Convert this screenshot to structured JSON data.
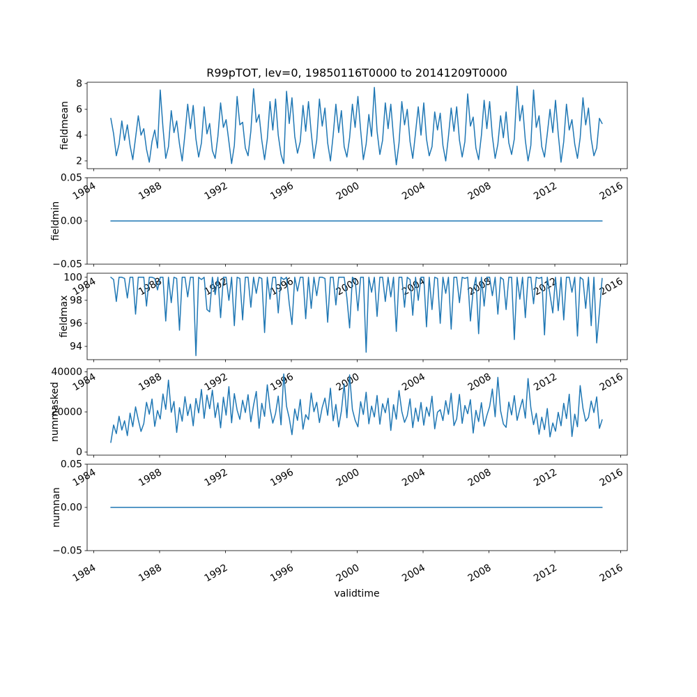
{
  "figure": {
    "title": "R99pTOT, lev=0, 19850116T0000 to 20141209T0000",
    "xlabel": "validtime",
    "line_color": "#1f77b4",
    "background": "#ffffff"
  },
  "chart_data": {
    "type": "line",
    "title": "R99pTOT, lev=0, 19850116T0000 to 20141209T0000",
    "xlabel": "validtime",
    "x_axis": {
      "ticks": [
        1984,
        1988,
        1992,
        1996,
        2000,
        2004,
        2008,
        2012,
        2016
      ],
      "lim": [
        1983.6,
        2016.4
      ]
    },
    "x": {
      "start": 1985.04,
      "step": 0.16667,
      "n": 180
    },
    "subplots": [
      {
        "name": "fieldmean",
        "ylabel": "fieldmean",
        "ylim": [
          1.4,
          8.1
        ],
        "yticks": [
          2,
          4,
          6,
          8
        ],
        "ytick_labels": [
          "2",
          "4",
          "6",
          "8"
        ],
        "values": [
          5.3,
          4.1,
          2.4,
          3.3,
          5.1,
          3.6,
          4.8,
          3.2,
          2.1,
          3.8,
          5.5,
          4.0,
          4.5,
          2.9,
          1.9,
          3.5,
          4.4,
          3.0,
          7.5,
          4.6,
          2.2,
          3.1,
          5.9,
          4.2,
          5.1,
          3.3,
          2.0,
          4.1,
          6.4,
          4.5,
          6.3,
          3.7,
          2.3,
          3.4,
          6.2,
          4.1,
          4.9,
          2.8,
          2.2,
          3.9,
          6.5,
          4.6,
          5.2,
          3.5,
          1.8,
          3.2,
          7.0,
          4.8,
          5.0,
          3.0,
          2.4,
          4.3,
          7.6,
          5.0,
          5.6,
          3.6,
          2.1,
          3.7,
          6.6,
          4.4,
          6.8,
          4.0,
          2.5,
          1.8,
          7.4,
          4.9,
          6.9,
          3.9,
          2.6,
          3.5,
          6.3,
          4.3,
          6.6,
          4.2,
          2.2,
          3.6,
          6.8,
          4.7,
          6.1,
          3.4,
          2.0,
          4.0,
          6.4,
          4.2,
          5.9,
          3.1,
          2.3,
          3.8,
          6.4,
          4.6,
          7.0,
          4.4,
          2.1,
          3.3,
          5.6,
          3.9,
          7.7,
          4.3,
          2.5,
          3.6,
          6.5,
          4.5,
          6.4,
          3.8,
          1.7,
          3.4,
          6.6,
          4.8,
          6.0,
          3.5,
          2.2,
          4.2,
          6.2,
          4.0,
          6.5,
          3.7,
          2.4,
          3.1,
          5.8,
          4.4,
          5.7,
          3.2,
          2.0,
          3.9,
          6.1,
          4.3,
          6.2,
          3.6,
          2.3,
          3.5,
          7.2,
          4.7,
          5.4,
          3.0,
          2.1,
          4.0,
          6.7,
          4.5,
          6.6,
          3.9,
          2.2,
          3.3,
          5.5,
          3.8,
          5.8,
          3.4,
          2.5,
          3.7,
          7.8,
          5.1,
          6.3,
          3.6,
          2.0,
          3.2,
          7.5,
          4.6,
          5.5,
          3.1,
          2.3,
          4.1,
          6.0,
          4.2,
          6.7,
          4.1,
          1.9,
          3.5,
          6.4,
          4.4,
          5.2,
          3.3,
          2.2,
          3.8,
          6.9,
          4.8,
          6.1,
          3.7,
          2.4,
          3.0,
          5.3,
          4.9
        ]
      },
      {
        "name": "fieldmin",
        "ylabel": "fieldmin",
        "ylim": [
          -0.05,
          0.05
        ],
        "yticks": [
          -0.05,
          0,
          0.05
        ],
        "ytick_labels": [
          "−0.05",
          "0.00",
          "0.05"
        ],
        "constant": 0
      },
      {
        "name": "fieldmax",
        "ylabel": "fieldmax",
        "ylim": [
          92.85,
          100.35
        ],
        "yticks": [
          94,
          96,
          98,
          100
        ],
        "ytick_labels": [
          "94",
          "96",
          "98",
          "100"
        ],
        "values": [
          100,
          99.8,
          97.9,
          100,
          100,
          99.9,
          98.2,
          100,
          100,
          96.8,
          100,
          100,
          100,
          97.5,
          100,
          100,
          99.9,
          98.9,
          100,
          100,
          96.2,
          100,
          97.8,
          100,
          99.9,
          95.4,
          100,
          100,
          98.3,
          100,
          100,
          93.2,
          100,
          99.8,
          100,
          97.2,
          97.0,
          100,
          98.5,
          100,
          96.5,
          100,
          100,
          98.0,
          100,
          95.8,
          100,
          99.9,
          96.3,
          100,
          100,
          97.4,
          100,
          98.6,
          100,
          99.9,
          95.2,
          100,
          98.1,
          100,
          100,
          96.9,
          100,
          99.8,
          100,
          97.7,
          95.9,
          100,
          98.8,
          100,
          100,
          96.4,
          100,
          97.3,
          100,
          98.4,
          100,
          100,
          99.9,
          96.1,
          100,
          100,
          97.6,
          100,
          100,
          100,
          98.2,
          95.6,
          100,
          99.8,
          97.1,
          100,
          100,
          93.5,
          100,
          98.7,
          100,
          96.6,
          100,
          100,
          97.9,
          100,
          98.3,
          100,
          95.3,
          100,
          100,
          97.4,
          100,
          99.8,
          96.7,
          100,
          98.0,
          100,
          100,
          95.7,
          100,
          97.2,
          100,
          99.9,
          96.0,
          100,
          98.6,
          100,
          95.5,
          100,
          100,
          97.8,
          100,
          99.9,
          100,
          96.2,
          98.9,
          100,
          95.1,
          100,
          97.5,
          100,
          100,
          98.4,
          100,
          96.8,
          100,
          99.8,
          97.2,
          100,
          100,
          94.6,
          100,
          98.1,
          100,
          96.5,
          100,
          100,
          97.7,
          100,
          99.9,
          100,
          95.0,
          100,
          98.5,
          96.9,
          100,
          97.1,
          100,
          96.3,
          100,
          100,
          98.7,
          100,
          94.9,
          100,
          99.8,
          97.3,
          100,
          95.8,
          100,
          94.3,
          97.0,
          99.9
        ]
      },
      {
        "name": "nummasked",
        "ylabel": "nummasked",
        "ylim": [
          -1500,
          41500
        ],
        "yticks": [
          0,
          20000,
          40000
        ],
        "ytick_labels": [
          "0",
          "20000",
          "40000"
        ],
        "values": [
          4800,
          13500,
          9200,
          17800,
          11000,
          15600,
          8200,
          19400,
          12700,
          22500,
          16100,
          10300,
          14200,
          24800,
          18900,
          26400,
          12800,
          20700,
          16500,
          28900,
          21300,
          35800,
          19800,
          25200,
          9800,
          22100,
          15400,
          27600,
          18200,
          23900,
          13100,
          26700,
          19500,
          31200,
          16800,
          28400,
          21600,
          30800,
          17200,
          24500,
          12100,
          27300,
          18400,
          32600,
          14600,
          29100,
          20900,
          16300,
          25800,
          19700,
          28600,
          15100,
          23400,
          30200,
          11900,
          24300,
          17800,
          33500,
          21700,
          14400,
          19200,
          27900,
          13600,
          38900,
          22800,
          16900,
          8700,
          21500,
          15800,
          26200,
          11400,
          18600,
          16200,
          29400,
          20100,
          24800,
          14700,
          22300,
          26900,
          18300,
          31800,
          15600,
          23700,
          12500,
          20400,
          33900,
          17100,
          38400,
          21200,
          15900,
          12600,
          25100,
          18700,
          29800,
          14100,
          22900,
          17500,
          28200,
          13900,
          24100,
          19600,
          26800,
          10800,
          23600,
          16400,
          30600,
          20200,
          14800,
          18100,
          26500,
          12200,
          21900,
          15300,
          24700,
          13400,
          22400,
          17900,
          27800,
          11600,
          19900,
          21100,
          15700,
          25600,
          18800,
          29300,
          13200,
          16600,
          28700,
          14300,
          23200,
          19100,
          26100,
          9500,
          20800,
          15200,
          24600,
          12900,
          18200,
          22700,
          31400,
          17600,
          37200,
          20600,
          14000,
          12300,
          24900,
          18500,
          28100,
          15800,
          21400,
          26300,
          16900,
          36600,
          22100,
          13700,
          19300,
          8900,
          17400,
          11200,
          21700,
          7600,
          14500,
          10400,
          19800,
          13100,
          24300,
          16700,
          28800,
          7800,
          18900,
          12600,
          33100,
          21800,
          15400,
          17300,
          25400,
          19700,
          27500,
          11800,
          16100
        ]
      },
      {
        "name": "numnan",
        "ylabel": "numnan",
        "ylim": [
          -0.05,
          0.05
        ],
        "yticks": [
          -0.05,
          0,
          0.05
        ],
        "ytick_labels": [
          "−0.05",
          "0.00",
          "0.05"
        ],
        "constant": 0
      }
    ]
  }
}
